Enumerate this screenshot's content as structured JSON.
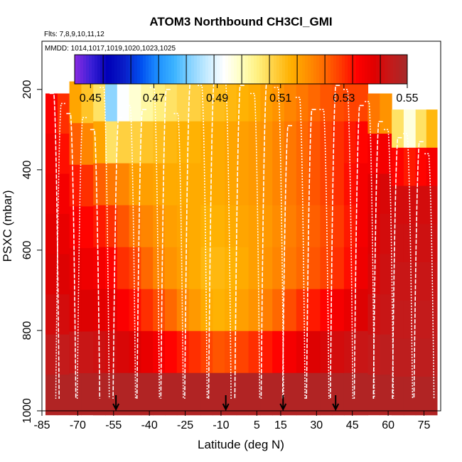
{
  "chart_data": {
    "type": "heatmap",
    "title": "ATOM3 Northbound CH3Cl_GMI",
    "flights_label": "Flts: 7,8,9,10,11,12",
    "dates_label": "MMDD: 1014,1017,1019,1020,1023,1025",
    "xlabel": "Latitude (deg N)",
    "ylabel": "PSXC (mbar)",
    "xlim": [
      -85,
      82
    ],
    "ylim": [
      1000,
      80
    ],
    "x_ticks": [
      -85,
      -70,
      -55,
      -40,
      -25,
      -10,
      5,
      15,
      30,
      45,
      60,
      75
    ],
    "x_tick_labels": [
      "-85",
      "-70",
      "-55",
      "-40",
      "-25",
      "-10",
      "5",
      "15",
      "30",
      "45",
      "60",
      "75"
    ],
    "y_ticks": [
      200,
      400,
      600,
      800,
      1000
    ],
    "y_tick_labels": [
      "200",
      "400",
      "600",
      "800",
      "1000"
    ],
    "colorbar": {
      "min": 0.445,
      "max": 0.55,
      "tick_values": [
        0.45,
        0.47,
        0.49,
        0.51,
        0.53,
        0.55
      ],
      "tick_labels": [
        "0.45",
        "0.47",
        "0.49",
        "0.51",
        "0.53",
        "0.55"
      ],
      "colors": [
        "#8a2be2",
        "#3a1fd6",
        "#0000b8",
        "#0a1ec8",
        "#0050f0",
        "#1e90ff",
        "#3cb4ff",
        "#8ad4ff",
        "#c8ecff",
        "#ffffff",
        "#ffffc0",
        "#fff080",
        "#ffd040",
        "#ffb000",
        "#ff9000",
        "#ff6a00",
        "#ff3a00",
        "#ff0000",
        "#e00000",
        "#c41a1a",
        "#a52a2a"
      ]
    },
    "arrow_latitudes": [
      -54,
      -8,
      16,
      38
    ],
    "columns": [
      {
        "lat": -81,
        "ptop": 210,
        "pbot": 1010,
        "vals": [
          0.535,
          0.537,
          0.538,
          0.539,
          0.54,
          0.542,
          0.545,
          0.548
        ]
      },
      {
        "lat": -76,
        "ptop": 210,
        "pbot": 1010,
        "vals": [
          0.53,
          0.533,
          0.536,
          0.538,
          0.54,
          0.542,
          0.545,
          0.548
        ]
      },
      {
        "lat": -71,
        "ptop": 180,
        "pbot": 1010,
        "vals": [
          0.515,
          0.525,
          0.532,
          0.535,
          0.538,
          0.54,
          0.544,
          0.548
        ]
      },
      {
        "lat": -66,
        "ptop": 180,
        "pbot": 1010,
        "vals": [
          0.51,
          0.52,
          0.53,
          0.534,
          0.537,
          0.54,
          0.544,
          0.548
        ]
      },
      {
        "lat": -61,
        "ptop": 175,
        "pbot": 1010,
        "vals": [
          0.505,
          0.515,
          0.525,
          0.532,
          0.536,
          0.539,
          0.543,
          0.548
        ]
      },
      {
        "lat": -56,
        "ptop": 175,
        "pbot": 1010,
        "vals": [
          0.482,
          0.505,
          0.522,
          0.53,
          0.534,
          0.538,
          0.542,
          0.548
        ]
      },
      {
        "lat": -51,
        "ptop": 175,
        "pbot": 1010,
        "vals": [
          0.492,
          0.508,
          0.52,
          0.526,
          0.53,
          0.535,
          0.541,
          0.548
        ]
      },
      {
        "lat": -46,
        "ptop": 175,
        "pbot": 1010,
        "vals": [
          0.496,
          0.508,
          0.516,
          0.522,
          0.528,
          0.533,
          0.54,
          0.548
        ]
      },
      {
        "lat": -41,
        "ptop": 175,
        "pbot": 1010,
        "vals": [
          0.5,
          0.51,
          0.516,
          0.52,
          0.524,
          0.53,
          0.538,
          0.548
        ]
      },
      {
        "lat": -36,
        "ptop": 175,
        "pbot": 1010,
        "vals": [
          0.503,
          0.511,
          0.515,
          0.518,
          0.52,
          0.527,
          0.536,
          0.548
        ]
      },
      {
        "lat": -31,
        "ptop": 175,
        "pbot": 1010,
        "vals": [
          0.505,
          0.512,
          0.514,
          0.516,
          0.518,
          0.524,
          0.534,
          0.548
        ]
      },
      {
        "lat": -26,
        "ptop": 175,
        "pbot": 1010,
        "vals": [
          0.507,
          0.513,
          0.514,
          0.515,
          0.516,
          0.52,
          0.532,
          0.548
        ]
      },
      {
        "lat": -21,
        "ptop": 175,
        "pbot": 1010,
        "vals": [
          0.508,
          0.513,
          0.514,
          0.514,
          0.514,
          0.517,
          0.53,
          0.548
        ]
      },
      {
        "lat": -16,
        "ptop": 175,
        "pbot": 1010,
        "vals": [
          0.51,
          0.514,
          0.514,
          0.513,
          0.512,
          0.514,
          0.528,
          0.548
        ]
      },
      {
        "lat": -11,
        "ptop": 175,
        "pbot": 1010,
        "vals": [
          0.511,
          0.514,
          0.514,
          0.513,
          0.512,
          0.513,
          0.526,
          0.548
        ]
      },
      {
        "lat": -6,
        "ptop": 175,
        "pbot": 1010,
        "vals": [
          0.512,
          0.515,
          0.515,
          0.514,
          0.513,
          0.514,
          0.527,
          0.548
        ]
      },
      {
        "lat": -1,
        "ptop": 175,
        "pbot": 1010,
        "vals": [
          0.513,
          0.516,
          0.516,
          0.515,
          0.514,
          0.516,
          0.528,
          0.548
        ]
      },
      {
        "lat": 4,
        "ptop": 175,
        "pbot": 1010,
        "vals": [
          0.514,
          0.517,
          0.517,
          0.516,
          0.516,
          0.518,
          0.53,
          0.548
        ]
      },
      {
        "lat": 9,
        "ptop": 175,
        "pbot": 1010,
        "vals": [
          0.516,
          0.518,
          0.518,
          0.517,
          0.518,
          0.521,
          0.532,
          0.548
        ]
      },
      {
        "lat": 14,
        "ptop": 175,
        "pbot": 1010,
        "vals": [
          0.518,
          0.52,
          0.52,
          0.519,
          0.52,
          0.524,
          0.534,
          0.548
        ]
      },
      {
        "lat": 19,
        "ptop": 175,
        "pbot": 1010,
        "vals": [
          0.52,
          0.522,
          0.522,
          0.521,
          0.522,
          0.527,
          0.536,
          0.548
        ]
      },
      {
        "lat": 24,
        "ptop": 175,
        "pbot": 1010,
        "vals": [
          0.522,
          0.524,
          0.524,
          0.523,
          0.524,
          0.53,
          0.538,
          0.548
        ]
      },
      {
        "lat": 29,
        "ptop": 175,
        "pbot": 1010,
        "vals": [
          0.524,
          0.526,
          0.526,
          0.525,
          0.526,
          0.532,
          0.54,
          0.548
        ]
      },
      {
        "lat": 34,
        "ptop": 175,
        "pbot": 1010,
        "vals": [
          0.526,
          0.528,
          0.528,
          0.527,
          0.528,
          0.534,
          0.541,
          0.548
        ]
      },
      {
        "lat": 39,
        "ptop": 175,
        "pbot": 1010,
        "vals": [
          0.527,
          0.53,
          0.53,
          0.529,
          0.53,
          0.536,
          0.542,
          0.548
        ]
      },
      {
        "lat": 44,
        "ptop": 175,
        "pbot": 1010,
        "vals": [
          0.528,
          0.532,
          0.533,
          0.532,
          0.533,
          0.538,
          0.543,
          0.548
        ]
      },
      {
        "lat": 49,
        "ptop": 175,
        "pbot": 1010,
        "vals": [
          0.528,
          0.534,
          0.536,
          0.536,
          0.537,
          0.54,
          0.544,
          0.548
        ]
      },
      {
        "lat": 54,
        "ptop": 210,
        "pbot": 1010,
        "vals": [
          0.522,
          0.536,
          0.539,
          0.54,
          0.541,
          0.543,
          0.545,
          0.548
        ]
      },
      {
        "lat": 59,
        "ptop": 210,
        "pbot": 1010,
        "vals": [
          0.518,
          0.536,
          0.541,
          0.542,
          0.543,
          0.544,
          0.546,
          0.548
        ]
      },
      {
        "lat": 64,
        "ptop": 250,
        "pbot": 1010,
        "vals": [
          0.505,
          0.534,
          0.542,
          0.543,
          0.544,
          0.545,
          0.546,
          0.548
        ]
      },
      {
        "lat": 69,
        "ptop": 250,
        "pbot": 1010,
        "vals": [
          0.495,
          0.532,
          0.542,
          0.543,
          0.544,
          0.545,
          0.546,
          0.548
        ]
      },
      {
        "lat": 74,
        "ptop": 250,
        "pbot": 1010,
        "vals": [
          0.505,
          0.534,
          0.542,
          0.543,
          0.544,
          0.545,
          0.546,
          0.548
        ]
      },
      {
        "lat": 78,
        "ptop": 250,
        "pbot": 1010,
        "vals": [
          0.512,
          0.536,
          0.542,
          0.543,
          0.544,
          0.545,
          0.546,
          0.548
        ]
      }
    ],
    "flight_profiles": [
      {
        "lat": -80,
        "p_top": 210,
        "dir": 1
      },
      {
        "lat": -77,
        "p_top": 235,
        "dir": -1
      },
      {
        "lat": -73,
        "p_top": 260,
        "dir": 1
      },
      {
        "lat": -68,
        "p_top": 270,
        "dir": -1
      },
      {
        "lat": -63,
        "p_top": 300,
        "dir": 1
      },
      {
        "lat": -59,
        "p_top": 195,
        "dir": 1
      },
      {
        "lat": -53,
        "p_top": 270,
        "dir": -1
      },
      {
        "lat": -48,
        "p_top": 240,
        "dir": 1
      },
      {
        "lat": -43,
        "p_top": 250,
        "dir": -1
      },
      {
        "lat": -38,
        "p_top": 195,
        "dir": 1
      },
      {
        "lat": -33,
        "p_top": 200,
        "dir": -1
      },
      {
        "lat": -28,
        "p_top": 260,
        "dir": 1
      },
      {
        "lat": -23,
        "p_top": 185,
        "dir": -1
      },
      {
        "lat": -18,
        "p_top": 190,
        "dir": 1
      },
      {
        "lat": -13,
        "p_top": 180,
        "dir": -1
      },
      {
        "lat": -8,
        "p_top": 185,
        "dir": 1
      },
      {
        "lat": -2,
        "p_top": 190,
        "dir": -1
      },
      {
        "lat": 4,
        "p_top": 210,
        "dir": 1
      },
      {
        "lat": 9,
        "p_top": 185,
        "dir": -1
      },
      {
        "lat": 14,
        "p_top": 195,
        "dir": 1
      },
      {
        "lat": 18,
        "p_top": 290,
        "dir": -1
      },
      {
        "lat": 23,
        "p_top": 220,
        "dir": 1
      },
      {
        "lat": 28,
        "p_top": 250,
        "dir": -1
      },
      {
        "lat": 33,
        "p_top": 250,
        "dir": 1
      },
      {
        "lat": 38,
        "p_top": 190,
        "dir": -1
      },
      {
        "lat": 43,
        "p_top": 200,
        "dir": 1
      },
      {
        "lat": 48,
        "p_top": 240,
        "dir": -1
      },
      {
        "lat": 52,
        "p_top": 230,
        "dir": 1
      },
      {
        "lat": 56,
        "p_top": 280,
        "dir": -1
      },
      {
        "lat": 60,
        "p_top": 300,
        "dir": 1
      },
      {
        "lat": 64,
        "p_top": 320,
        "dir": -1
      },
      {
        "lat": 68,
        "p_top": 310,
        "dir": 1
      },
      {
        "lat": 73,
        "p_top": 330,
        "dir": -1
      },
      {
        "lat": 77,
        "p_top": 360,
        "dir": 1
      }
    ]
  }
}
